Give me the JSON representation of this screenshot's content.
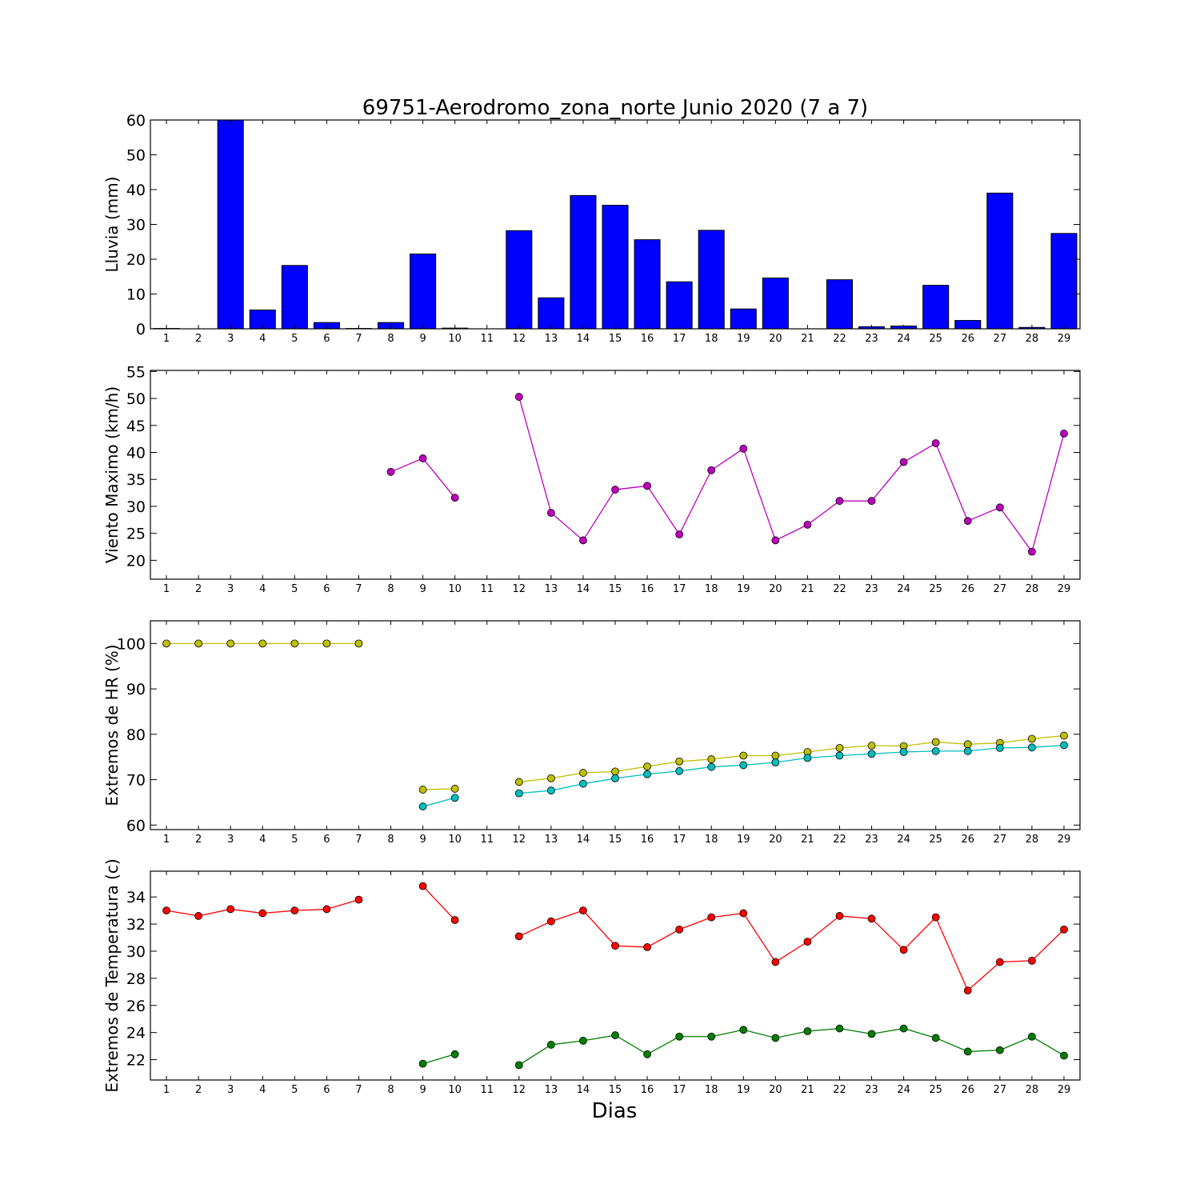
{
  "title": "69751-Aerodromo_zona_norte Junio 2020  (7 a 7)",
  "xlabel": "Dias",
  "chart_data": [
    {
      "type": "bar",
      "ylabel": "Lluvia (mm)",
      "ylim": [
        0,
        60
      ],
      "yticks": [
        0,
        10,
        20,
        30,
        40,
        50,
        60
      ],
      "xlim": [
        0.5,
        29.5
      ],
      "categories": [
        1,
        2,
        3,
        4,
        5,
        6,
        7,
        8,
        9,
        10,
        11,
        12,
        13,
        14,
        15,
        16,
        17,
        18,
        19,
        20,
        21,
        22,
        23,
        24,
        25,
        26,
        27,
        28,
        29
      ],
      "values": [
        0.1,
        0,
        60,
        5.4,
        18.2,
        1.8,
        0.1,
        1.8,
        21.5,
        0.2,
        0,
        28.2,
        8.9,
        38.3,
        35.5,
        25.6,
        13.5,
        28.3,
        5.7,
        14.6,
        0,
        14.1,
        0.6,
        0.8,
        12.5,
        2.4,
        39,
        0.4,
        27.4
      ],
      "color": "#0000ff"
    },
    {
      "type": "line",
      "ylabel": "Viento Maximo (km/h)",
      "ylim": [
        16.5,
        55.2
      ],
      "yticks": [
        20,
        25,
        30,
        35,
        40,
        45,
        50,
        55
      ],
      "xlim": [
        0.5,
        29.5
      ],
      "x": [
        1,
        2,
        3,
        4,
        5,
        6,
        7,
        8,
        9,
        10,
        11,
        12,
        13,
        14,
        15,
        16,
        17,
        18,
        19,
        20,
        21,
        22,
        23,
        24,
        25,
        26,
        27,
        28,
        29
      ],
      "series": [
        {
          "color": "#bf00bf",
          "values": [
            null,
            null,
            null,
            null,
            null,
            null,
            null,
            36.4,
            38.9,
            31.6,
            null,
            50.3,
            28.8,
            23.7,
            33.1,
            33.8,
            24.8,
            36.7,
            40.7,
            23.7,
            26.6,
            31,
            31,
            38.2,
            41.7,
            27.3,
            29.8,
            21.6,
            43.5
          ]
        }
      ]
    },
    {
      "type": "line",
      "ylabel": "Extremos de HR (%)",
      "ylim": [
        59,
        105
      ],
      "yticks": [
        60,
        70,
        80,
        90,
        100
      ],
      "xlim": [
        0.5,
        29.5
      ],
      "x": [
        1,
        2,
        3,
        4,
        5,
        6,
        7,
        8,
        9,
        10,
        11,
        12,
        13,
        14,
        15,
        16,
        17,
        18,
        19,
        20,
        21,
        22,
        23,
        24,
        25,
        26,
        27,
        28,
        29
      ],
      "series": [
        {
          "color": "#bfbf00",
          "values": [
            100,
            100,
            100,
            100,
            100,
            100,
            100,
            null,
            67.8,
            68,
            null,
            69.5,
            70.3,
            71.5,
            71.8,
            72.9,
            74,
            74.5,
            75.3,
            75.3,
            76.1,
            77,
            77.5,
            77.4,
            78.3,
            77.8,
            78.1,
            79,
            79.7
          ]
        },
        {
          "color": "#00bfbf",
          "values": [
            null,
            null,
            null,
            null,
            null,
            null,
            null,
            null,
            64.1,
            66,
            null,
            67,
            67.6,
            69.1,
            70.3,
            71.2,
            71.9,
            72.8,
            73.2,
            73.8,
            74.8,
            75.3,
            75.7,
            76.1,
            76.3,
            76.3,
            77,
            77.1,
            77.6
          ]
        }
      ]
    },
    {
      "type": "line",
      "ylabel": "Extremos de Temperatura (c)",
      "ylim": [
        20.5,
        35.9
      ],
      "yticks": [
        22,
        24,
        26,
        28,
        30,
        32,
        34
      ],
      "xlim": [
        0.5,
        29.5
      ],
      "x": [
        1,
        2,
        3,
        4,
        5,
        6,
        7,
        8,
        9,
        10,
        11,
        12,
        13,
        14,
        15,
        16,
        17,
        18,
        19,
        20,
        21,
        22,
        23,
        24,
        25,
        26,
        27,
        28,
        29
      ],
      "series": [
        {
          "color": "#ff0000",
          "values": [
            33,
            32.6,
            33.1,
            32.8,
            33,
            33.1,
            33.8,
            null,
            34.8,
            32.3,
            null,
            31.1,
            32.2,
            33,
            30.4,
            30.3,
            31.6,
            32.5,
            32.8,
            29.2,
            30.7,
            32.6,
            32.4,
            30.1,
            32.5,
            27.1,
            29.2,
            29.3,
            31.6
          ]
        },
        {
          "color": "#007f00",
          "values": [
            null,
            null,
            null,
            null,
            null,
            null,
            null,
            null,
            21.7,
            22.4,
            null,
            21.6,
            23.1,
            23.4,
            23.8,
            22.4,
            23.7,
            23.7,
            24.2,
            23.6,
            24.1,
            24.3,
            23.9,
            24.3,
            23.6,
            22.6,
            22.7,
            23.7,
            22.3
          ]
        }
      ]
    }
  ]
}
